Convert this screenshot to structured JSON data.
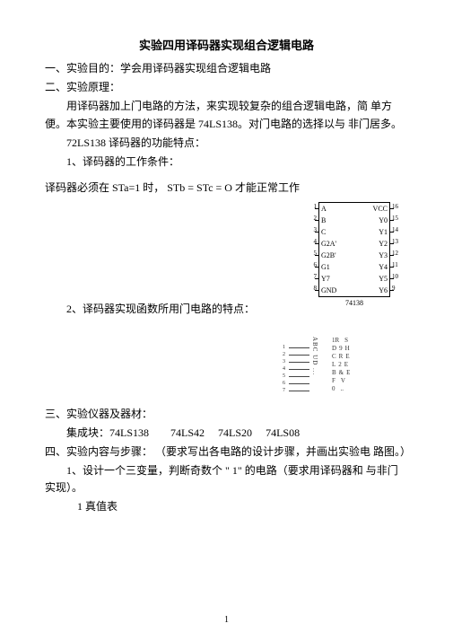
{
  "title": "实验四用译码器实现组合逻辑电路",
  "sec1_head": "一、实验目的：学会用译码器实现组合逻辑电路",
  "sec2_head": "二、实验原理：",
  "p1": "用译码器加上门电路的方法，来实现较复杂的组合逻辑电路，简 单方便。本实验主要使用的译码器是 74LS138。对门电路的选择以与 非门居多。",
  "p2": "72LS138 译码器的功能特点：",
  "p3": "1、译码器的工作条件：",
  "eq": "译码器必须在 STa=1 时， STb = STc = O 才能正常工作",
  "p4": "2、译码器实现函数所用门电路的特点：",
  "sec3_head": "三、实验仪器及器材：",
  "chips_label": "集成块：",
  "chips": [
    "74LS138",
    "74LS42",
    "74LS20",
    "74LS08"
  ],
  "sec4_head": "四、实验内容与步骤： （要求写出各电路的设计步骤，并画出实验电 路图。）",
  "p5": "1、设计一个三变量，判断奇数个 \" 1\" 的电路（要求用译码器和 与非门实现）。",
  "p6": "1 真值表",
  "page_number": "1",
  "chip1": {
    "name": "74138",
    "left_pins": [
      {
        "n": "1",
        "l": "A"
      },
      {
        "n": "2",
        "l": "B"
      },
      {
        "n": "3",
        "l": "C"
      },
      {
        "n": "4",
        "l": "G2A'"
      },
      {
        "n": "5",
        "l": "G2B'"
      },
      {
        "n": "6",
        "l": "G1"
      },
      {
        "n": "7",
        "l": "Y7"
      },
      {
        "n": "8",
        "l": "GND"
      }
    ],
    "right_pins": [
      {
        "n": "16",
        "l": "VCC"
      },
      {
        "n": "15",
        "l": "Y0"
      },
      {
        "n": "14",
        "l": "Y1"
      },
      {
        "n": "13",
        "l": "Y2"
      },
      {
        "n": "12",
        "l": "Y3"
      },
      {
        "n": "11",
        "l": "Y4"
      },
      {
        "n": "10",
        "l": "Y5"
      },
      {
        "n": "9",
        "l": "Y6"
      }
    ]
  },
  "diagram2": {
    "left_nums": [
      "1",
      "2",
      "3",
      "4",
      "5",
      "6",
      "7"
    ],
    "mid": "ABC  UD  ...",
    "right_l": [
      "1R",
      "D",
      "C",
      "L",
      "B",
      "F",
      "0"
    ],
    "right_r": [
      "S",
      "H",
      "E",
      "E",
      "E",
      "V",
      ".."
    ],
    "right_n": [
      "",
      "9",
      "R",
      "2",
      "&",
      "",
      ""
    ]
  }
}
